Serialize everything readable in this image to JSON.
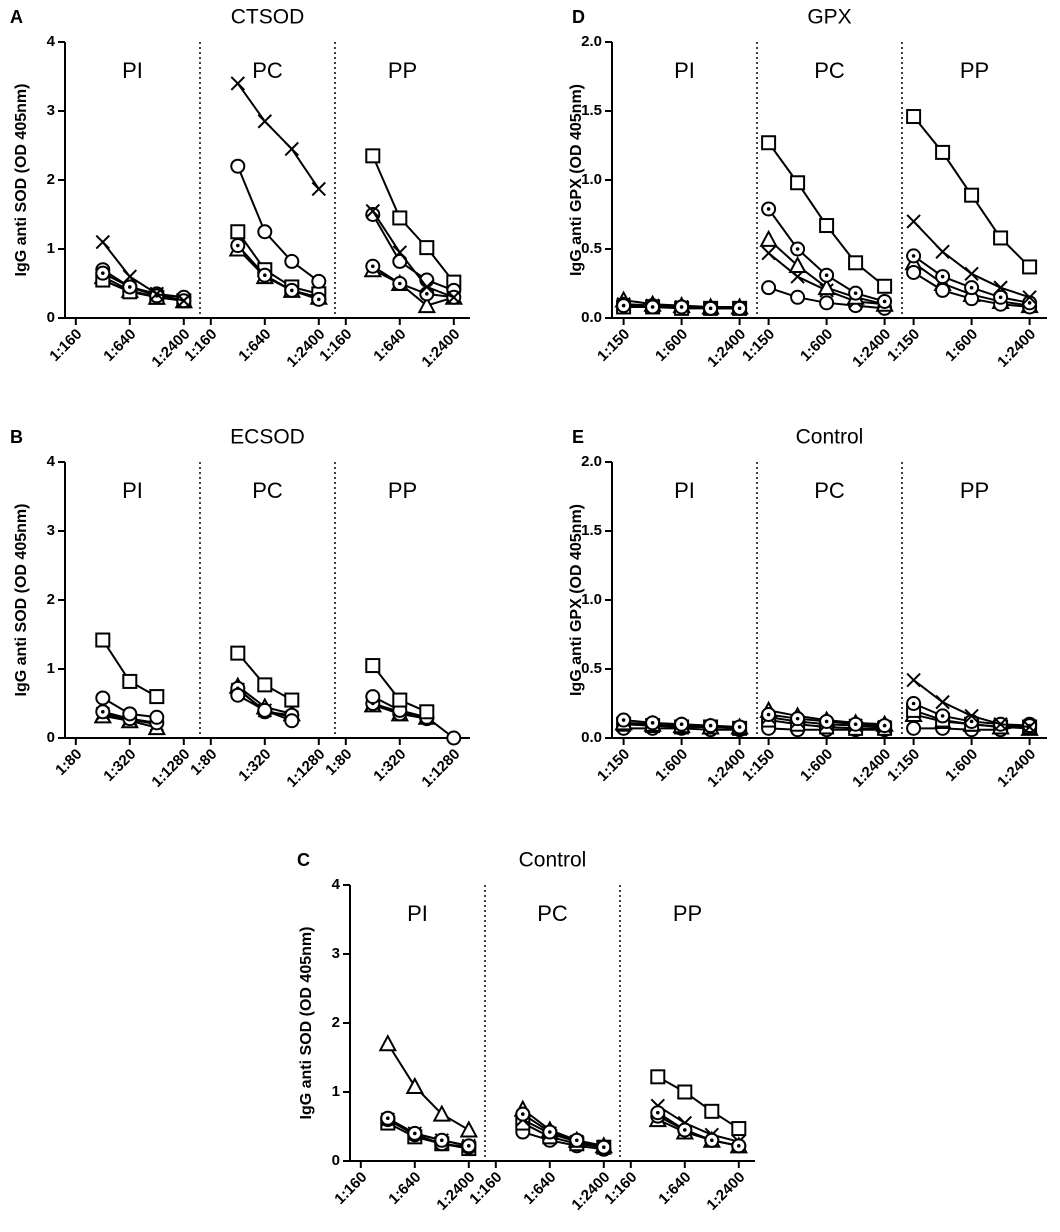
{
  "chart_data": [
    {
      "type": "line",
      "label": "A",
      "title": "CTSOD",
      "y_label": "IgG anti SOD (OD 405nm)",
      "ylim": [
        0,
        4
      ],
      "yticks": [
        0,
        1,
        2,
        3,
        4
      ],
      "categories": [
        "1:160",
        null,
        "1:640",
        null,
        "1:2400"
      ],
      "sections": [
        {
          "name": "PI",
          "series": [
            {
              "marker": "triangle",
              "values": [
                null,
                0.6,
                0.4,
                0.3,
                0.25
              ]
            },
            {
              "marker": "square",
              "values": [
                null,
                0.55,
                0.38,
                0.3,
                0.25
              ]
            },
            {
              "marker": "circle",
              "values": [
                null,
                0.7,
                0.45,
                0.35,
                0.3
              ]
            },
            {
              "marker": "dotted-circle",
              "values": [
                null,
                0.65,
                0.45,
                0.32,
                0.25
              ]
            },
            {
              "marker": "cross",
              "values": [
                null,
                1.1,
                0.6,
                0.35,
                0.25
              ]
            }
          ]
        },
        {
          "name": "PC",
          "series": [
            {
              "marker": "triangle",
              "values": [
                null,
                1.0,
                0.6,
                0.4,
                0.3
              ]
            },
            {
              "marker": "square",
              "values": [
                null,
                1.25,
                0.7,
                0.45,
                0.35
              ]
            },
            {
              "marker": "circle",
              "values": [
                null,
                2.2,
                1.25,
                0.82,
                0.53
              ]
            },
            {
              "marker": "dotted-circle",
              "values": [
                null,
                1.05,
                0.62,
                0.4,
                0.27
              ]
            },
            {
              "marker": "cross",
              "values": [
                null,
                3.4,
                2.85,
                2.45,
                1.87
              ]
            }
          ]
        },
        {
          "name": "PP",
          "series": [
            {
              "marker": "triangle",
              "values": [
                null,
                0.7,
                0.5,
                0.18,
                0.3
              ]
            },
            {
              "marker": "square",
              "values": [
                null,
                2.35,
                1.45,
                1.02,
                0.52
              ]
            },
            {
              "marker": "circle",
              "values": [
                null,
                1.5,
                0.82,
                0.55,
                0.4
              ]
            },
            {
              "marker": "dotted-circle",
              "values": [
                null,
                0.75,
                0.5,
                0.35,
                0.3
              ]
            },
            {
              "marker": "cross",
              "values": [
                null,
                1.55,
                0.95,
                0.45,
                0.3
              ]
            }
          ]
        }
      ]
    },
    {
      "type": "line",
      "label": "B",
      "title": "ECSOD",
      "y_label": "IgG anti SOD (OD 405nm)",
      "ylim": [
        0,
        4
      ],
      "yticks": [
        0,
        1,
        2,
        3,
        4
      ],
      "categories": [
        "1:80",
        null,
        "1:320",
        null,
        "1:1280"
      ],
      "sections": [
        {
          "name": "PI",
          "series": [
            {
              "marker": "triangle",
              "values": [
                null,
                0.32,
                0.25,
                0.15,
                null
              ]
            },
            {
              "marker": "cross",
              "values": [
                null,
                0.35,
                0.27,
                0.2,
                null
              ]
            },
            {
              "marker": "dotted-circle",
              "values": [
                null,
                0.38,
                0.28,
                0.22,
                null
              ]
            },
            {
              "marker": "circle",
              "values": [
                null,
                0.58,
                0.35,
                0.3,
                null
              ]
            },
            {
              "marker": "square",
              "values": [
                null,
                1.42,
                0.82,
                0.6,
                null
              ]
            }
          ]
        },
        {
          "name": "PC",
          "series": [
            {
              "marker": "triangle",
              "values": [
                null,
                0.75,
                0.45,
                0.35,
                null
              ]
            },
            {
              "marker": "cross",
              "values": [
                null,
                0.7,
                0.4,
                0.3,
                null
              ]
            },
            {
              "marker": "dotted-circle",
              "values": [
                null,
                0.72,
                0.38,
                0.33,
                null
              ]
            },
            {
              "marker": "circle",
              "values": [
                null,
                0.62,
                0.4,
                0.25,
                null
              ]
            },
            {
              "marker": "square",
              "values": [
                null,
                1.23,
                0.77,
                0.55,
                null
              ]
            }
          ]
        },
        {
          "name": "PP",
          "series": [
            {
              "marker": "triangle",
              "values": [
                null,
                0.48,
                0.35,
                0.3,
                null
              ]
            },
            {
              "marker": "cross",
              "values": [
                null,
                0.5,
                0.38,
                0.3,
                null
              ]
            },
            {
              "marker": "dotted-circle",
              "values": [
                null,
                0.5,
                0.35,
                0.28,
                null
              ]
            },
            {
              "marker": "circle",
              "values": [
                null,
                0.6,
                0.4,
                0.3,
                0.0
              ]
            },
            {
              "marker": "square",
              "values": [
                null,
                1.05,
                0.55,
                0.38,
                null
              ]
            }
          ]
        }
      ]
    },
    {
      "type": "line",
      "label": "C",
      "title": "Control",
      "y_label": "IgG anti SOD (OD 405nm)",
      "ylim": [
        0,
        4
      ],
      "yticks": [
        0,
        1,
        2,
        3,
        4
      ],
      "categories": [
        "1:160",
        null,
        "1:640",
        null,
        "1:2400"
      ],
      "sections": [
        {
          "name": "PI",
          "series": [
            {
              "marker": "square",
              "values": [
                null,
                0.55,
                0.35,
                0.25,
                0.18
              ]
            },
            {
              "marker": "cross",
              "values": [
                null,
                0.6,
                0.4,
                0.3,
                0.22
              ]
            },
            {
              "marker": "circle",
              "values": [
                null,
                0.6,
                0.38,
                0.25,
                0.2
              ]
            },
            {
              "marker": "dotted-circle",
              "values": [
                null,
                0.62,
                0.4,
                0.3,
                0.22
              ]
            },
            {
              "marker": "triangle",
              "values": [
                null,
                1.7,
                1.08,
                0.68,
                0.45
              ]
            }
          ]
        },
        {
          "name": "PC",
          "series": [
            {
              "marker": "circle",
              "values": [
                null,
                0.42,
                0.3,
                0.22,
                0.17
              ]
            },
            {
              "marker": "square",
              "values": [
                null,
                0.55,
                0.35,
                0.25,
                0.2
              ]
            },
            {
              "marker": "cross",
              "values": [
                null,
                0.6,
                0.4,
                0.28,
                0.2
              ]
            },
            {
              "marker": "triangle",
              "values": [
                null,
                0.75,
                0.45,
                0.3,
                0.22
              ]
            },
            {
              "marker": "dotted-circle",
              "values": [
                null,
                0.68,
                0.42,
                0.3,
                0.2
              ]
            }
          ]
        },
        {
          "name": "PP",
          "series": [
            {
              "marker": "triangle",
              "values": [
                null,
                0.6,
                0.42,
                0.3,
                0.22
              ]
            },
            {
              "marker": "circle",
              "values": [
                null,
                0.65,
                0.45,
                0.3,
                0.22
              ]
            },
            {
              "marker": "cross",
              "values": [
                null,
                0.8,
                0.55,
                0.38,
                0.28
              ]
            },
            {
              "marker": "dotted-circle",
              "values": [
                null,
                0.7,
                0.45,
                0.3,
                0.22
              ]
            },
            {
              "marker": "square",
              "values": [
                null,
                1.22,
                1.0,
                0.72,
                0.47
              ]
            }
          ]
        }
      ]
    },
    {
      "type": "line",
      "label": "D",
      "title": "GPX",
      "y_label": "IgG anti GPX (OD 405nm)",
      "ylim": [
        0,
        2
      ],
      "yticks": [
        {
          "value": 0,
          "label": "0.0"
        },
        0.5,
        {
          "value": 1,
          "label": "1.0"
        },
        1.5,
        {
          "value": 2,
          "label": "2.0"
        }
      ],
      "categories": [
        "1:150",
        null,
        "1:600",
        null,
        "1:2400"
      ],
      "sections": [
        {
          "name": "PI",
          "series": [
            {
              "marker": "triangle",
              "values": [
                0.13,
                0.1,
                0.09,
                0.08,
                0.08
              ]
            },
            {
              "marker": "cross",
              "values": [
                0.1,
                0.09,
                0.08,
                0.07,
                0.07
              ]
            },
            {
              "marker": "circle",
              "values": [
                0.1,
                0.09,
                0.08,
                0.07,
                0.07
              ]
            },
            {
              "marker": "square",
              "values": [
                0.08,
                0.08,
                0.07,
                0.07,
                0.07
              ]
            },
            {
              "marker": "dotted-circle",
              "values": [
                0.09,
                0.08,
                0.08,
                0.07,
                0.07
              ]
            }
          ]
        },
        {
          "name": "PC",
          "series": [
            {
              "marker": "circle",
              "values": [
                0.22,
                0.15,
                0.11,
                0.09,
                0.07
              ]
            },
            {
              "marker": "cross",
              "values": [
                0.47,
                0.3,
                0.2,
                0.12,
                0.1
              ]
            },
            {
              "marker": "triangle",
              "values": [
                0.57,
                0.38,
                0.22,
                0.15,
                0.1
              ]
            },
            {
              "marker": "dotted-circle",
              "values": [
                0.79,
                0.5,
                0.31,
                0.18,
                0.12
              ]
            },
            {
              "marker": "square",
              "values": [
                1.27,
                0.98,
                0.67,
                0.4,
                0.23
              ]
            }
          ]
        },
        {
          "name": "PP",
          "series": [
            {
              "marker": "triangle",
              "values": [
                0.4,
                0.25,
                0.17,
                0.12,
                0.09
              ]
            },
            {
              "marker": "circle",
              "values": [
                0.33,
                0.2,
                0.14,
                0.1,
                0.08
              ]
            },
            {
              "marker": "dotted-circle",
              "values": [
                0.45,
                0.3,
                0.22,
                0.15,
                0.11
              ]
            },
            {
              "marker": "cross",
              "values": [
                0.7,
                0.48,
                0.32,
                0.22,
                0.15
              ]
            },
            {
              "marker": "square",
              "values": [
                1.46,
                1.2,
                0.89,
                0.58,
                0.37
              ]
            }
          ]
        }
      ]
    },
    {
      "type": "line",
      "label": "E",
      "title": "Control",
      "y_label": "IgG anti GPX (OD 405nm)",
      "ylim": [
        0,
        2
      ],
      "yticks": [
        {
          "value": 0,
          "label": "0.0"
        },
        0.5,
        {
          "value": 1,
          "label": "1.0"
        },
        1.5,
        {
          "value": 2,
          "label": "2.0"
        }
      ],
      "categories": [
        "1:150",
        null,
        "1:600",
        null,
        "1:2400"
      ],
      "sections": [
        {
          "name": "PI",
          "series": [
            {
              "marker": "circle",
              "values": [
                0.07,
                0.07,
                0.07,
                0.06,
                0.06
              ]
            },
            {
              "marker": "square",
              "values": [
                0.1,
                0.09,
                0.08,
                0.08,
                0.07
              ]
            },
            {
              "marker": "cross",
              "values": [
                0.1,
                0.09,
                0.08,
                0.08,
                0.07
              ]
            },
            {
              "marker": "triangle",
              "values": [
                0.11,
                0.1,
                0.09,
                0.08,
                0.08
              ]
            },
            {
              "marker": "dotted-circle",
              "values": [
                0.13,
                0.11,
                0.1,
                0.09,
                0.08
              ]
            }
          ]
        },
        {
          "name": "PC",
          "series": [
            {
              "marker": "circle",
              "values": [
                0.07,
                0.06,
                0.06,
                0.06,
                0.06
              ]
            },
            {
              "marker": "square",
              "values": [
                0.13,
                0.1,
                0.08,
                0.07,
                0.07
              ]
            },
            {
              "marker": "cross",
              "values": [
                0.15,
                0.12,
                0.1,
                0.09,
                0.08
              ]
            },
            {
              "marker": "triangle",
              "values": [
                0.2,
                0.16,
                0.13,
                0.11,
                0.1
              ]
            },
            {
              "marker": "dotted-circle",
              "values": [
                0.17,
                0.14,
                0.12,
                0.1,
                0.09
              ]
            }
          ]
        },
        {
          "name": "PP",
          "series": [
            {
              "marker": "circle",
              "values": [
                0.07,
                0.07,
                0.06,
                0.06,
                0.1
              ]
            },
            {
              "marker": "triangle",
              "values": [
                0.17,
                0.12,
                0.1,
                0.08,
                0.07
              ]
            },
            {
              "marker": "square",
              "values": [
                0.2,
                0.13,
                0.1,
                0.08,
                0.08
              ]
            },
            {
              "marker": "dotted-circle",
              "values": [
                0.25,
                0.16,
                0.12,
                0.1,
                0.09
              ]
            },
            {
              "marker": "cross",
              "values": [
                0.42,
                0.26,
                0.16,
                0.1,
                0.08
              ]
            }
          ]
        }
      ]
    }
  ]
}
